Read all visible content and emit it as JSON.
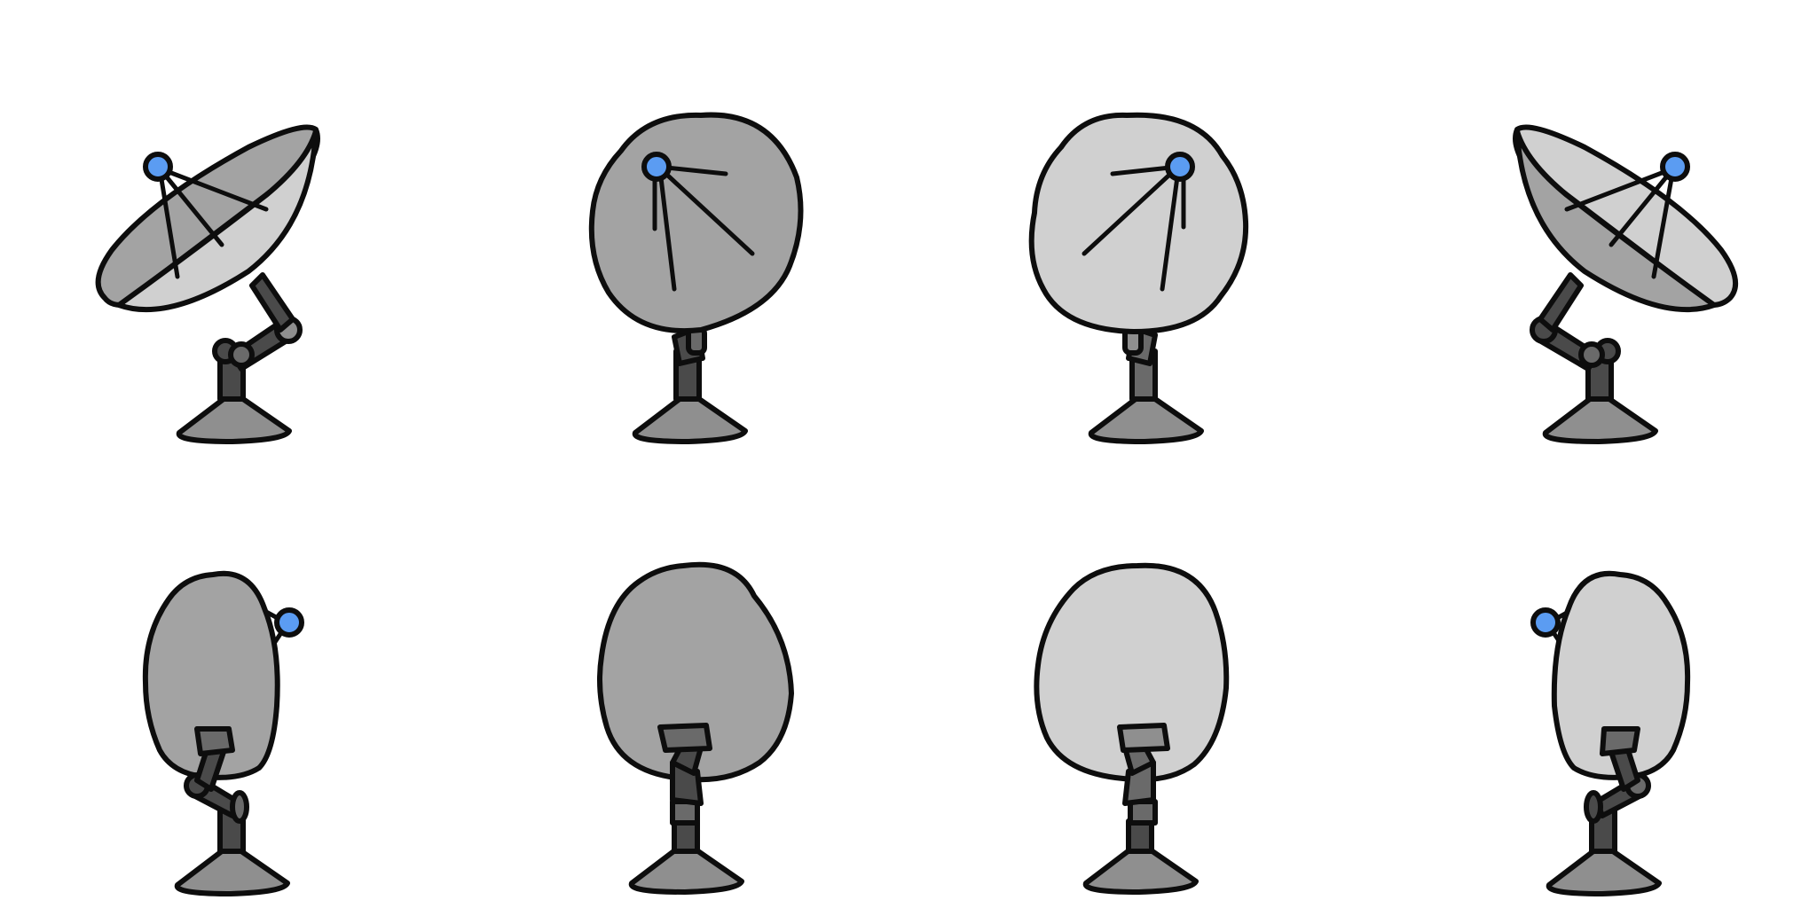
{
  "sprite_sheet": {
    "rows": 2,
    "columns": 4,
    "frames": [
      {
        "row": 1,
        "view": "side-left",
        "dish_color": "#a3a3a3",
        "inner_color": "#d0d0d0"
      },
      {
        "row": 1,
        "view": "front-left",
        "dish_color": "#a3a3a3"
      },
      {
        "row": 1,
        "view": "front-right",
        "dish_color": "#d0d0d0"
      },
      {
        "row": 1,
        "view": "side-right",
        "dish_color": "#d0d0d0",
        "inner_color": "#a3a3a3"
      },
      {
        "row": 2,
        "view": "back-left-feed",
        "dish_color": "#a3a3a3"
      },
      {
        "row": 2,
        "view": "back",
        "dish_color": "#a3a3a3"
      },
      {
        "row": 2,
        "view": "back",
        "dish_color": "#d0d0d0"
      },
      {
        "row": 2,
        "view": "back-right-feed",
        "dish_color": "#d0d0d0"
      }
    ],
    "colors": {
      "feed_horn": "#5b9cf2",
      "arm": "#4a4a4a",
      "arm_light": "#6a6a6a",
      "base": "#8f8f8f",
      "outline": "#0d0d0d"
    }
  }
}
